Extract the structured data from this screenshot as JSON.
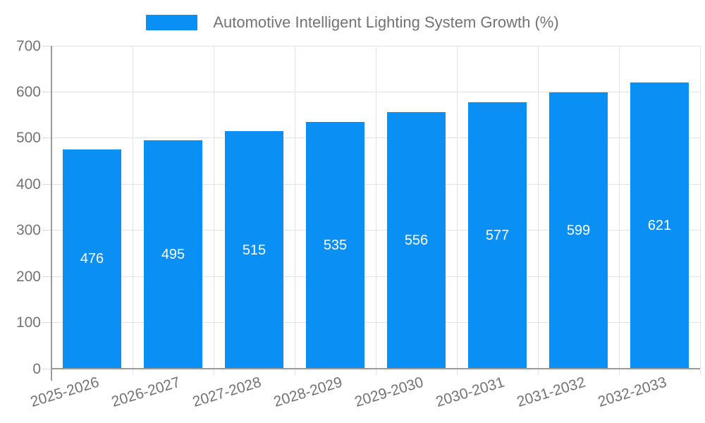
{
  "legend": {
    "label": "Automotive Intelligent Lighting System Growth (%)",
    "swatch_color": "#0A8FF5"
  },
  "chart_data": {
    "type": "bar",
    "title": "Automotive Intelligent Lighting System Growth (%)",
    "categories": [
      "2025-2026",
      "2026-2027",
      "2027-2028",
      "2028-2029",
      "2029-2030",
      "2030-2031",
      "2031-2032",
      "2032-2033"
    ],
    "values": [
      476,
      495,
      515,
      535,
      556,
      577,
      599,
      621
    ],
    "value_labels": [
      "476",
      "495",
      "515",
      "535",
      "556",
      "577",
      "599",
      "621"
    ],
    "xlabel": "",
    "ylabel": "",
    "ylim": [
      0,
      700
    ],
    "ytick_step": 100,
    "ytick_labels": [
      "0",
      "100",
      "200",
      "300",
      "400",
      "500",
      "600",
      "700"
    ],
    "grid": true,
    "legend_position": "top-center",
    "bar_color": "#0A8FF5",
    "value_label_color": "#ffffff",
    "axis_color": "#9a9a9a",
    "grid_color": "#e3e3e3",
    "text_color": "#737373"
  }
}
